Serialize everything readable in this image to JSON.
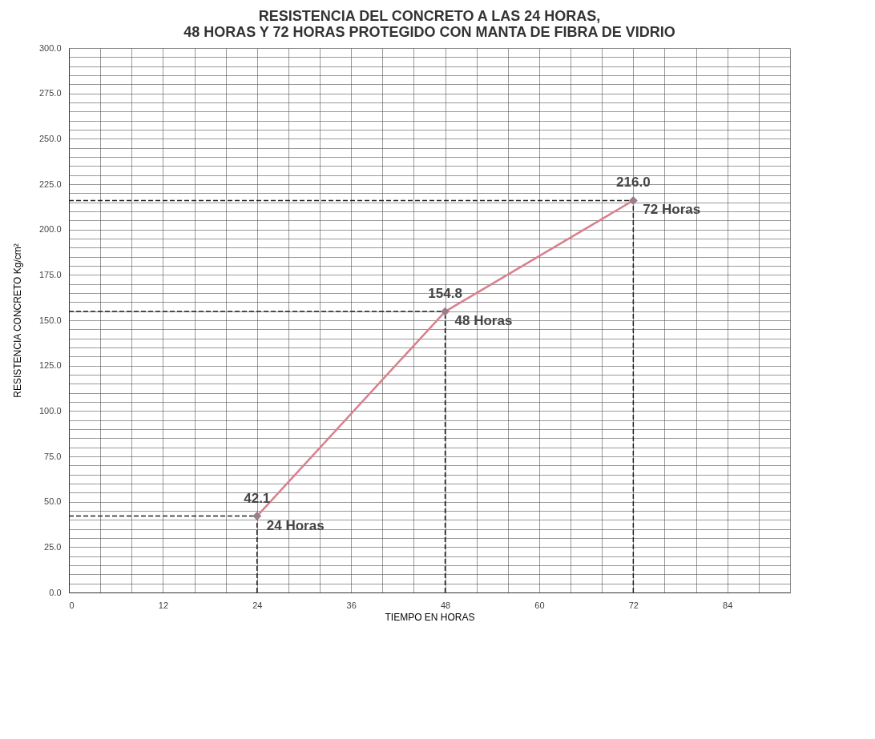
{
  "chart_data": {
    "type": "line",
    "title": "RESISTENCIA DEL CONCRETO A LAS 24 HORAS,\n48 HORAS Y 72 HORAS PROTEGIDO CON MANTA DE FIBRA DE VIDRIO",
    "xlabel": "TIEMPO EN HORAS",
    "ylabel": "RESISTENCIA CONCRETO Kg/cm²",
    "x": [
      24,
      48,
      72
    ],
    "series": [
      {
        "color": "#d9808e",
        "values": [
          42.1,
          154.8,
          216.0
        ],
        "value_labels": [
          "42.1",
          "154.8",
          "216.0"
        ]
      }
    ],
    "marker": "diamond",
    "line_style": "solid",
    "grid": true,
    "xlim": [
      0,
      92
    ],
    "xticks": [
      0,
      {
        "value": 4,
        "label": null
      },
      {
        "value": 8,
        "label": null
      },
      12,
      {
        "value": 16,
        "label": null
      },
      {
        "value": 20,
        "label": null
      },
      24,
      {
        "value": 28,
        "label": null
      },
      {
        "value": 32,
        "label": null
      },
      36,
      {
        "value": 40,
        "label": null
      },
      {
        "value": 44,
        "label": null
      },
      48,
      {
        "value": 52,
        "label": null
      },
      {
        "value": 56,
        "label": null
      },
      60,
      {
        "value": 64,
        "label": null
      },
      {
        "value": 68,
        "label": null
      },
      72,
      {
        "value": 76,
        "label": null
      },
      {
        "value": 80,
        "label": null
      },
      84,
      {
        "value": 88,
        "label": null
      },
      {
        "value": 92,
        "label": null
      }
    ],
    "ylim": [
      0,
      300
    ],
    "yticks": [
      {
        "value": 0,
        "label": "0.0"
      },
      {
        "value": 5,
        "label": null
      },
      {
        "value": 10,
        "label": null
      },
      {
        "value": 15,
        "label": null
      },
      {
        "value": 20,
        "label": null
      },
      {
        "value": 25,
        "label": "25.0"
      },
      {
        "value": 30,
        "label": null
      },
      {
        "value": 35,
        "label": null
      },
      {
        "value": 40,
        "label": null
      },
      {
        "value": 45,
        "label": null
      },
      {
        "value": 50,
        "label": "50.0"
      },
      {
        "value": 55,
        "label": null
      },
      {
        "value": 60,
        "label": null
      },
      {
        "value": 65,
        "label": null
      },
      {
        "value": 70,
        "label": null
      },
      {
        "value": 75,
        "label": "75.0"
      },
      {
        "value": 80,
        "label": null
      },
      {
        "value": 85,
        "label": null
      },
      {
        "value": 90,
        "label": null
      },
      {
        "value": 95,
        "label": null
      },
      {
        "value": 100,
        "label": "100.0"
      },
      {
        "value": 105,
        "label": null
      },
      {
        "value": 110,
        "label": null
      },
      {
        "value": 115,
        "label": null
      },
      {
        "value": 120,
        "label": null
      },
      {
        "value": 125,
        "label": "125.0"
      },
      {
        "value": 130,
        "label": null
      },
      {
        "value": 135,
        "label": null
      },
      {
        "value": 140,
        "label": null
      },
      {
        "value": 145,
        "label": null
      },
      {
        "value": 150,
        "label": "150.0"
      },
      {
        "value": 155,
        "label": null
      },
      {
        "value": 160,
        "label": null
      },
      {
        "value": 165,
        "label": null
      },
      {
        "value": 170,
        "label": null
      },
      {
        "value": 175,
        "label": "175.0"
      },
      {
        "value": 180,
        "label": null
      },
      {
        "value": 185,
        "label": null
      },
      {
        "value": 190,
        "label": null
      },
      {
        "value": 195,
        "label": null
      },
      {
        "value": 200,
        "label": "200.0"
      },
      {
        "value": 205,
        "label": null
      },
      {
        "value": 210,
        "label": null
      },
      {
        "value": 215,
        "label": null
      },
      {
        "value": 220,
        "label": null
      },
      {
        "value": 225,
        "label": "225.0"
      },
      {
        "value": 230,
        "label": null
      },
      {
        "value": 235,
        "label": null
      },
      {
        "value": 240,
        "label": null
      },
      {
        "value": 245,
        "label": null
      },
      {
        "value": 250,
        "label": "250.0"
      },
      {
        "value": 255,
        "label": null
      },
      {
        "value": 260,
        "label": null
      },
      {
        "value": 265,
        "label": null
      },
      {
        "value": 270,
        "label": null
      },
      {
        "value": 275,
        "label": "275.0"
      },
      {
        "value": 280,
        "label": null
      },
      {
        "value": 285,
        "label": null
      },
      {
        "value": 290,
        "label": null
      },
      {
        "value": 295,
        "label": null
      },
      {
        "value": 300,
        "label": "300.0"
      }
    ],
    "annotations": [
      {
        "text": "24 Horas",
        "x": 24,
        "y": 42.1
      },
      {
        "text": "48 Horas",
        "x": 48,
        "y": 154.8
      },
      {
        "text": "72 Horas",
        "x": 72,
        "y": 216.0
      }
    ]
  }
}
